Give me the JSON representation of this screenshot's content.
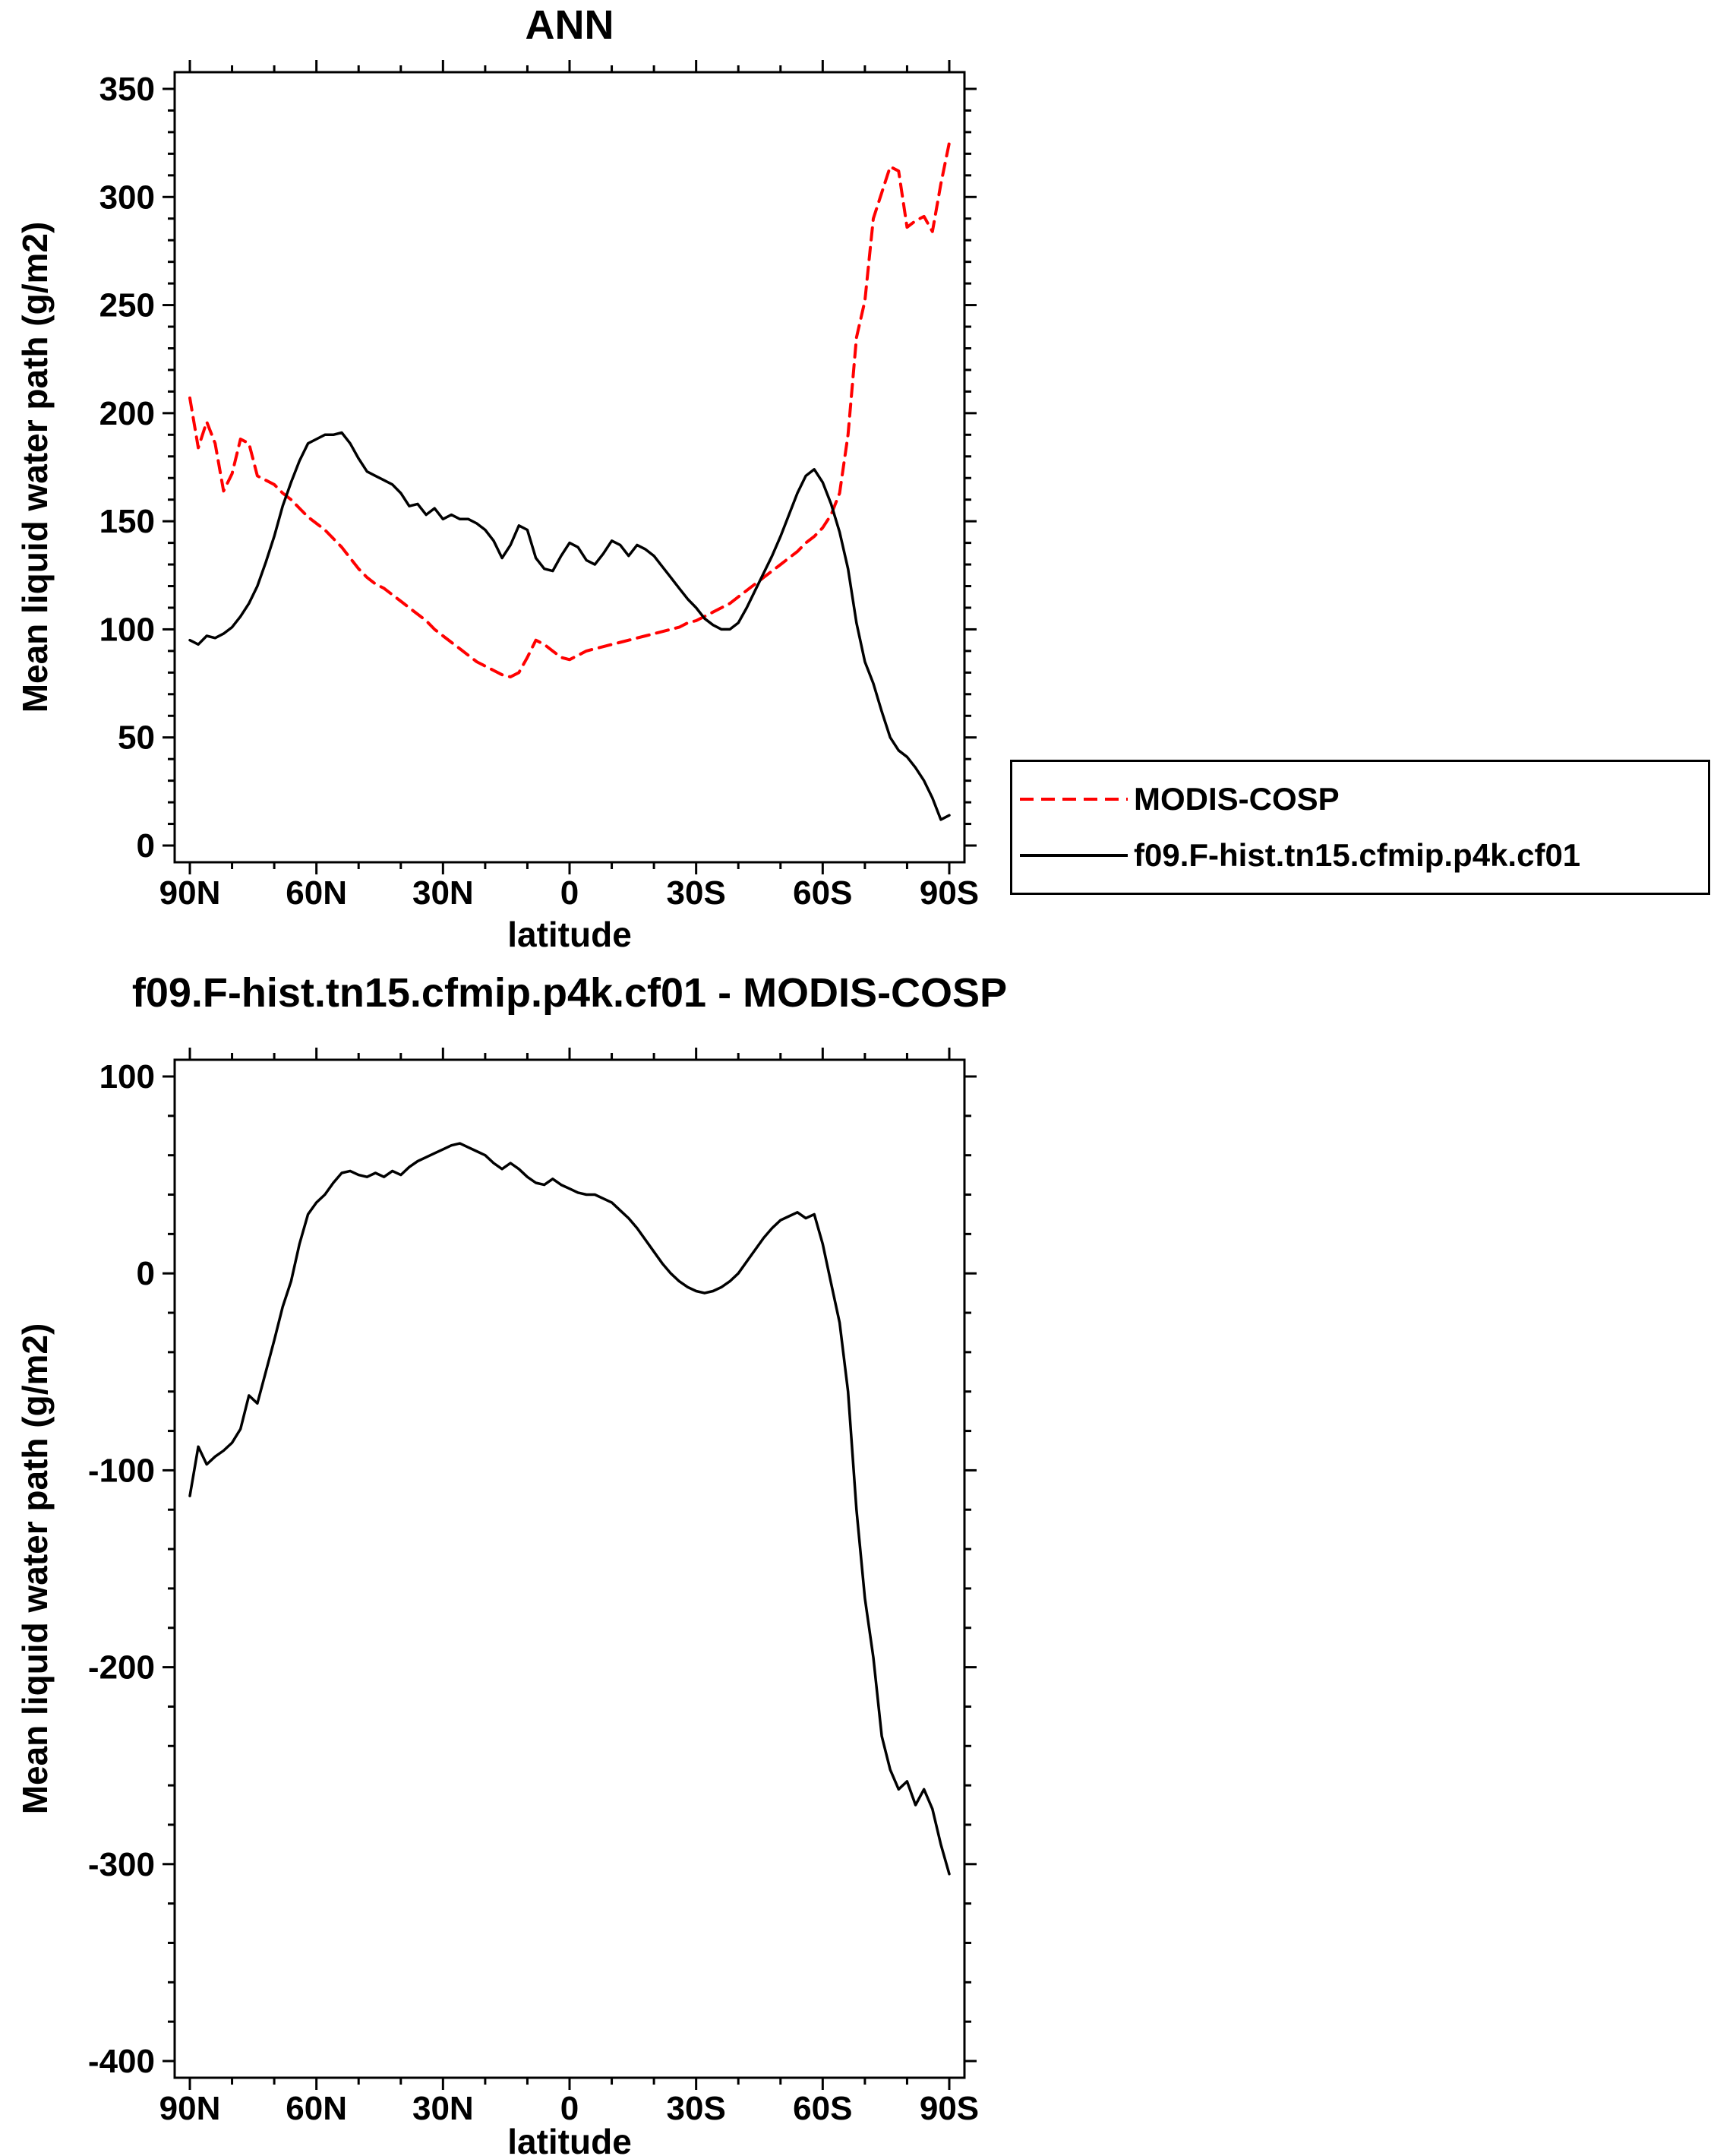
{
  "figure": {
    "background": "#ffffff",
    "axis_color": "#000000"
  },
  "chart_data": [
    {
      "type": "line",
      "title": "ANN",
      "xlabel": "latitude",
      "ylabel": "Mean liquid water path (g/m2)",
      "xlim": [
        90,
        -90
      ],
      "ylim": [
        0,
        350
      ],
      "xticks": [
        90,
        60,
        30,
        0,
        -30,
        -60,
        -90
      ],
      "xtick_labels": [
        "90N",
        "60N",
        "30N",
        "0",
        "30S",
        "60S",
        "90S"
      ],
      "yticks": [
        0,
        50,
        100,
        150,
        200,
        250,
        300,
        350
      ],
      "ytick_labels": [
        "0",
        "50",
        "100",
        "150",
        "200",
        "250",
        "300",
        "350"
      ],
      "x_minor_step": 10,
      "y_minor_step": 10,
      "grid": false,
      "legend_position": "right-outside",
      "x": [
        90,
        88,
        86,
        84,
        82,
        80,
        78,
        76,
        74,
        72,
        70,
        68,
        66,
        64,
        62,
        60,
        58,
        56,
        54,
        52,
        50,
        48,
        46,
        44,
        42,
        40,
        38,
        36,
        34,
        32,
        30,
        28,
        26,
        24,
        22,
        20,
        18,
        16,
        14,
        12,
        10,
        8,
        6,
        4,
        2,
        0,
        -2,
        -4,
        -6,
        -8,
        -10,
        -12,
        -14,
        -16,
        -18,
        -20,
        -22,
        -24,
        -26,
        -28,
        -30,
        -32,
        -34,
        -36,
        -38,
        -40,
        -42,
        -44,
        -46,
        -48,
        -50,
        -52,
        -54,
        -56,
        -58,
        -60,
        -62,
        -64,
        -66,
        -68,
        -70,
        -72,
        -74,
        -76,
        -78,
        -80,
        -82,
        -84,
        -86,
        -88,
        -90
      ],
      "series": [
        {
          "name": "MODIS-COSP",
          "color": "#ff0000",
          "dash": "dashed",
          "values": [
            207,
            184,
            196,
            186,
            164,
            172,
            188,
            186,
            171,
            169,
            167,
            163,
            160,
            156,
            152,
            149,
            146,
            142,
            138,
            133,
            128,
            124,
            121,
            119,
            116,
            113,
            110,
            107,
            104,
            100,
            97,
            94,
            91,
            88,
            85,
            83,
            81,
            79,
            78,
            80,
            87,
            95,
            93,
            90,
            87,
            86,
            88,
            90,
            91,
            92,
            93,
            94,
            95,
            96,
            97,
            98,
            99,
            100,
            101,
            103,
            104,
            106,
            108,
            110,
            112,
            115,
            118,
            121,
            124,
            127,
            130,
            133,
            136,
            140,
            143,
            147,
            153,
            163,
            190,
            235,
            252,
            290,
            302,
            314,
            312,
            286,
            289,
            291,
            284,
            306,
            325
          ]
        },
        {
          "name": "f09.F-hist.tn15.cfmip.p4k.cf01",
          "color": "#000000",
          "dash": "solid",
          "values": [
            95,
            93,
            97,
            96,
            98,
            101,
            106,
            112,
            120,
            131,
            143,
            157,
            168,
            178,
            186,
            188,
            190,
            190,
            191,
            186,
            179,
            173,
            171,
            169,
            167,
            163,
            157,
            158,
            153,
            156,
            151,
            153,
            151,
            151,
            149,
            146,
            141,
            133,
            139,
            148,
            146,
            133,
            128,
            127,
            134,
            140,
            138,
            132,
            130,
            135,
            141,
            139,
            134,
            139,
            137,
            134,
            129,
            124,
            119,
            114,
            110,
            105,
            102,
            100,
            100,
            103,
            110,
            118,
            126,
            134,
            143,
            153,
            163,
            171,
            174,
            168,
            158,
            145,
            128,
            103,
            85,
            75,
            62,
            50,
            44,
            41,
            36,
            30,
            22,
            12,
            14
          ]
        }
      ]
    },
    {
      "type": "line",
      "title": "f09.F-hist.tn15.cfmip.p4k.cf01 - MODIS-COSP",
      "xlabel": "latitude",
      "ylabel": "Mean liquid water path (g/m2)",
      "xlim": [
        90,
        -90
      ],
      "ylim": [
        -400,
        100
      ],
      "xticks": [
        90,
        60,
        30,
        0,
        -30,
        -60,
        -90
      ],
      "xtick_labels": [
        "90N",
        "60N",
        "30N",
        "0",
        "30S",
        "60S",
        "90S"
      ],
      "yticks": [
        -400,
        -300,
        -200,
        -100,
        0,
        100
      ],
      "ytick_labels": [
        "-400",
        "-300",
        "-200",
        "-100",
        "0",
        "100"
      ],
      "x_minor_step": 10,
      "y_minor_step": 20,
      "grid": false,
      "legend_position": "none",
      "x": [
        90,
        88,
        86,
        84,
        82,
        80,
        78,
        76,
        74,
        72,
        70,
        68,
        66,
        64,
        62,
        60,
        58,
        56,
        54,
        52,
        50,
        48,
        46,
        44,
        42,
        40,
        38,
        36,
        34,
        32,
        30,
        28,
        26,
        24,
        22,
        20,
        18,
        16,
        14,
        12,
        10,
        8,
        6,
        4,
        2,
        0,
        -2,
        -4,
        -6,
        -8,
        -10,
        -12,
        -14,
        -16,
        -18,
        -20,
        -22,
        -24,
        -26,
        -28,
        -30,
        -32,
        -34,
        -36,
        -38,
        -40,
        -42,
        -44,
        -46,
        -48,
        -50,
        -52,
        -54,
        -56,
        -58,
        -60,
        -62,
        -64,
        -66,
        -68,
        -70,
        -72,
        -74,
        -76,
        -78,
        -80,
        -82,
        -84,
        -86,
        -88,
        -90
      ],
      "series": [
        {
          "name": "f09.F-hist.tn15.cfmip.p4k.cf01 - MODIS-COSP",
          "color": "#000000",
          "dash": "solid",
          "values": [
            -113,
            -88,
            -97,
            -93,
            -90,
            -86,
            -79,
            -62,
            -66,
            -50,
            -34,
            -17,
            -4,
            15,
            30,
            36,
            40,
            46,
            51,
            52,
            50,
            49,
            51,
            49,
            52,
            50,
            54,
            57,
            59,
            61,
            63,
            65,
            66,
            64,
            62,
            60,
            56,
            53,
            56,
            53,
            49,
            46,
            45,
            48,
            45,
            43,
            41,
            40,
            40,
            38,
            36,
            32,
            28,
            23,
            17,
            11,
            5,
            0,
            -4,
            -7,
            -9,
            -10,
            -9,
            -7,
            -4,
            0,
            6,
            12,
            18,
            23,
            27,
            29,
            31,
            28,
            30,
            15,
            -5,
            -25,
            -60,
            -120,
            -165,
            -195,
            -235,
            -252,
            -262,
            -258,
            -270,
            -262,
            -272,
            -290,
            -305
          ]
        }
      ]
    }
  ]
}
